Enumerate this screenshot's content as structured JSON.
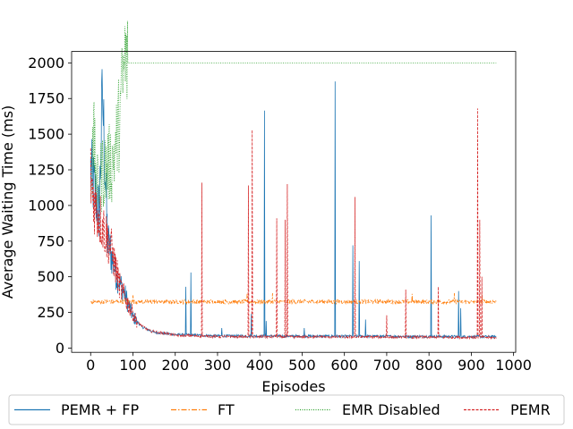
{
  "chart_data": {
    "type": "line",
    "title": "",
    "xlabel": "Episodes",
    "ylabel": "Average Waiting Time (ms)",
    "xlim": [
      -45,
      1005
    ],
    "ylim": [
      -30,
      2080
    ],
    "xticks": [
      0,
      100,
      200,
      300,
      400,
      500,
      600,
      700,
      800,
      900,
      1000
    ],
    "yticks": [
      0,
      250,
      500,
      750,
      1000,
      1250,
      1500,
      1750,
      2000
    ],
    "grid": false,
    "legend_position": "bottom",
    "episodes": 960,
    "series": [
      {
        "name": "PEMR + FP",
        "color": "#1f77b4",
        "style": "solid",
        "initial": [
          [
            0,
            1240
          ],
          [
            10,
            1100
          ],
          [
            20,
            950
          ],
          [
            28,
            1780
          ],
          [
            40,
            760
          ],
          [
            60,
            520
          ],
          [
            80,
            380
          ],
          [
            100,
            220
          ],
          [
            120,
            150
          ],
          [
            150,
            110
          ],
          [
            200,
            95
          ],
          [
            300,
            85
          ],
          [
            960,
            80
          ]
        ],
        "spikes": [
          [
            28,
            1780
          ],
          [
            225,
            430
          ],
          [
            237,
            530
          ],
          [
            310,
            140
          ],
          [
            380,
            240
          ],
          [
            411,
            1665
          ],
          [
            415,
            190
          ],
          [
            505,
            140
          ],
          [
            578,
            1870
          ],
          [
            620,
            720
          ],
          [
            635,
            610
          ],
          [
            650,
            200
          ],
          [
            805,
            930
          ],
          [
            870,
            400
          ],
          [
            875,
            280
          ]
        ]
      },
      {
        "name": "FT",
        "color": "#ff7f0e",
        "style": "dashdot",
        "initial": [
          [
            0,
            325
          ],
          [
            960,
            325
          ]
        ],
        "spikes": [
          [
            100,
            370
          ],
          [
            370,
            380
          ],
          [
            430,
            385
          ],
          [
            760,
            380
          ],
          [
            860,
            385
          ],
          [
            925,
            375
          ]
        ]
      },
      {
        "name": "EMR Disabled",
        "color": "#2ca02c",
        "style": "dotted",
        "initial": [
          [
            0,
            1000
          ],
          [
            5,
            1550
          ],
          [
            15,
            1100
          ],
          [
            30,
            1250
          ],
          [
            50,
            1300
          ],
          [
            60,
            1430
          ],
          [
            70,
            1650
          ],
          [
            80,
            2000
          ],
          [
            90,
            2000
          ],
          [
            960,
            2000
          ]
        ],
        "spikes": [
          [
            5,
            1550
          ],
          [
            12,
            1300
          ],
          [
            24,
            1430
          ],
          [
            58,
            1430
          ],
          [
            72,
            1890
          ],
          [
            78,
            1950
          ]
        ]
      },
      {
        "name": "PEMR",
        "color": "#d62728",
        "style": "dashed",
        "initial": [
          [
            0,
            1200
          ],
          [
            10,
            1000
          ],
          [
            30,
            850
          ],
          [
            50,
            680
          ],
          [
            70,
            420
          ],
          [
            90,
            300
          ],
          [
            110,
            180
          ],
          [
            140,
            120
          ],
          [
            200,
            90
          ],
          [
            300,
            80
          ],
          [
            960,
            75
          ]
        ],
        "spikes": [
          [
            263,
            1160
          ],
          [
            373,
            1140
          ],
          [
            382,
            1530
          ],
          [
            440,
            910
          ],
          [
            460,
            900
          ],
          [
            465,
            1150
          ],
          [
            625,
            1060
          ],
          [
            700,
            230
          ],
          [
            745,
            410
          ],
          [
            822,
            430
          ],
          [
            915,
            1680
          ],
          [
            920,
            900
          ],
          [
            925,
            500
          ]
        ]
      }
    ]
  }
}
